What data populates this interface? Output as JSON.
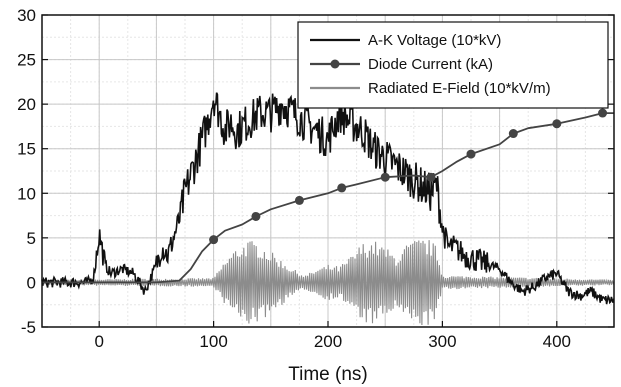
{
  "chart_data": {
    "type": "line",
    "title": "",
    "xlabel": "Time (ns)",
    "ylabel": "",
    "xlim": [
      -50,
      450
    ],
    "ylim": [
      -5,
      30
    ],
    "x_ticks": [
      0,
      100,
      200,
      300,
      400
    ],
    "x_tick_labels": [
      "0",
      "100",
      "200",
      "300",
      "400"
    ],
    "y_ticks": [
      -5,
      0,
      5,
      10,
      15,
      20,
      25,
      30
    ],
    "y_tick_labels": [
      "-5",
      "0",
      "5",
      "10",
      "15",
      "20",
      "25",
      "30"
    ],
    "grid": true,
    "legend_position": "top-right",
    "series": [
      {
        "name": "A-K Voltage (10*kV)",
        "color": "#111111",
        "style": "noisy-line",
        "x": [
          -50,
          -10,
          -5,
          0,
          5,
          10,
          20,
          30,
          40,
          45,
          50,
          55,
          60,
          65,
          70,
          75,
          80,
          85,
          90,
          95,
          100,
          105,
          110,
          115,
          120,
          130,
          140,
          150,
          160,
          170,
          180,
          190,
          200,
          210,
          220,
          230,
          240,
          250,
          260,
          270,
          280,
          290,
          295,
          300,
          305,
          310,
          320,
          330,
          340,
          350,
          360,
          370,
          380,
          390,
          400,
          410,
          420,
          430,
          440,
          450
        ],
        "y": [
          0,
          0,
          0.5,
          5.5,
          2,
          1,
          1.5,
          1,
          -1,
          0.5,
          2,
          4,
          3,
          5,
          7,
          10,
          12,
          14,
          16,
          18,
          21,
          19,
          17,
          18,
          17,
          18,
          19,
          19,
          20,
          19,
          18,
          17,
          16,
          19,
          18,
          17,
          15,
          14,
          13,
          12,
          11,
          10,
          11,
          6,
          4,
          4,
          3,
          2.5,
          2,
          1.5,
          0,
          -1,
          -0.5,
          0.5,
          1,
          -1,
          -1.5,
          -1,
          -2,
          -2
        ]
      },
      {
        "name": "Diode Current (kA)",
        "color": "#444444",
        "style": "line-markers",
        "x": [
          -50,
          0,
          50,
          70,
          80,
          90,
          100,
          110,
          125,
          137,
          150,
          175,
          200,
          212,
          225,
          250,
          275,
          290,
          300,
          312,
          325,
          350,
          362,
          375,
          400,
          425,
          440,
          450
        ],
        "y": [
          0,
          0,
          0,
          0.2,
          1.5,
          3.5,
          4.8,
          5.8,
          6.5,
          7.4,
          8.2,
          9.2,
          10,
          10.6,
          11,
          11.8,
          12,
          11.8,
          12.5,
          13.5,
          14.4,
          15.5,
          16.7,
          17.3,
          17.8,
          18.5,
          19,
          19
        ]
      },
      {
        "name": "Radiated E-Field (10*kV/m)",
        "color": "#8c8c8c",
        "style": "oscillation",
        "x": [
          -50,
          100,
          110,
          120,
          130,
          140,
          150,
          160,
          170,
          180,
          190,
          200,
          210,
          220,
          230,
          240,
          250,
          260,
          270,
          280,
          290,
          295,
          300,
          450
        ],
        "envelope": [
          0.3,
          0.5,
          2.5,
          4,
          4.8,
          4.5,
          3.5,
          2.5,
          1.5,
          0.8,
          1.5,
          2,
          1.8,
          3,
          4.5,
          4.8,
          4,
          3,
          4.5,
          5,
          4.8,
          4,
          0.8,
          0.3
        ]
      }
    ]
  }
}
